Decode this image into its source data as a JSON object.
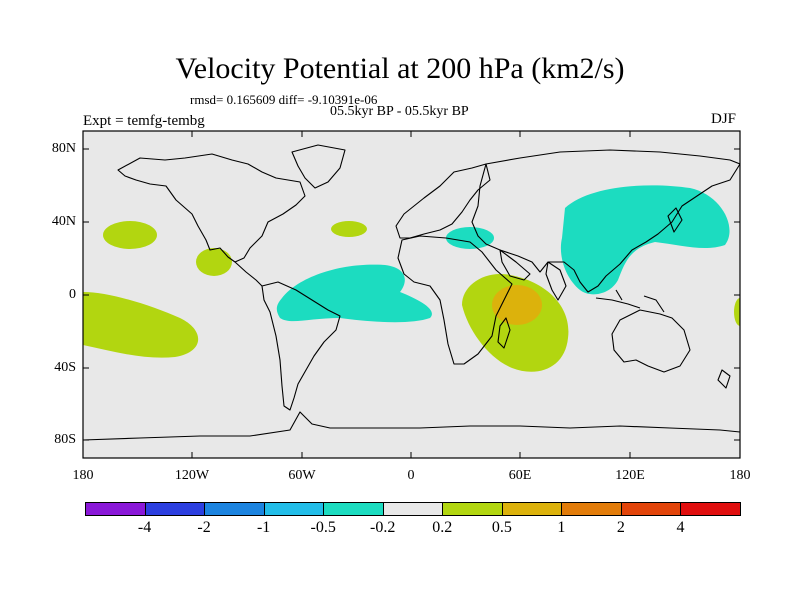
{
  "title": "Velocity Potential at 200 hPa (km2/s)",
  "stats": "rmsd= 0.165609 diff= -9.10391e-06",
  "period": "05.5kyr BP - 05.5kyr BP",
  "experiment": "Expt = temfg-tembg",
  "season": "DJF",
  "lat_labels": [
    "80N",
    "40N",
    "0",
    "40S",
    "80S"
  ],
  "lon_labels": [
    "180",
    "120W",
    "60W",
    "0",
    "60E",
    "120E",
    "180"
  ],
  "colorbar": {
    "colors": [
      "#8a18d8",
      "#2c3fe0",
      "#1c84e0",
      "#22bde8",
      "#1cdcc0",
      "#e8e8e8",
      "#b2d610",
      "#dcb20c",
      "#e27c0a",
      "#e2440a",
      "#e00e0e"
    ],
    "labels": [
      "-4",
      "-2",
      "-1",
      "-0.5",
      "-0.2",
      "0.2",
      "0.5",
      "1",
      "2",
      "4"
    ]
  },
  "colors": {
    "background": "#e8e8e8",
    "negative": "#1cdcc0",
    "positive": "#b2d610",
    "strong_positive": "#dcb20c",
    "coast": "#000000"
  }
}
